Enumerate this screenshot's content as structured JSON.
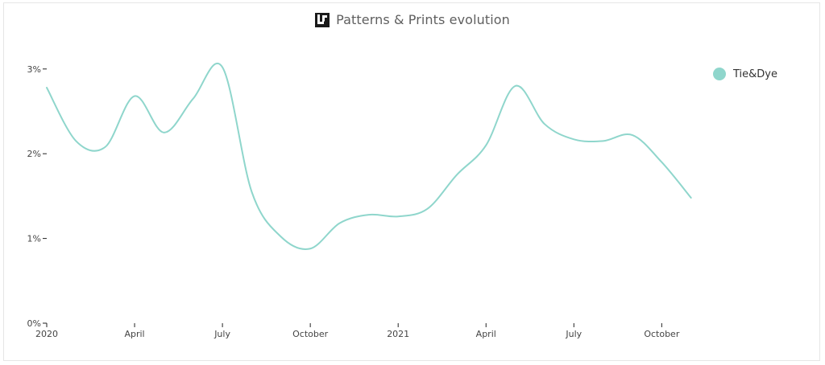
{
  "header": {
    "title": "Patterns & Prints evolution",
    "logo_icon": "brand-logo-icon"
  },
  "colors": {
    "series": "#8fd6cc",
    "axis": "#222222",
    "text": "#444444"
  },
  "chart_data": {
    "type": "line",
    "title": "Patterns & Prints evolution",
    "xlabel": "",
    "ylabel": "",
    "ylim": [
      0,
      3.0
    ],
    "xlim": [
      "2020-01",
      "2021-11"
    ],
    "y_ticks": [
      {
        "value": 0,
        "label": "0%"
      },
      {
        "value": 1,
        "label": "1%"
      },
      {
        "value": 2,
        "label": "2%"
      },
      {
        "value": 3,
        "label": "3%"
      }
    ],
    "x_ticks": [
      {
        "value": "2020-01",
        "label": "2020"
      },
      {
        "value": "2020-04",
        "label": "April"
      },
      {
        "value": "2020-07",
        "label": "July"
      },
      {
        "value": "2020-10",
        "label": "October"
      },
      {
        "value": "2021-01",
        "label": "2021"
      },
      {
        "value": "2021-04",
        "label": "April"
      },
      {
        "value": "2021-07",
        "label": "July"
      },
      {
        "value": "2021-10",
        "label": "October"
      }
    ],
    "legend_position": "top-right",
    "grid": false,
    "series": [
      {
        "name": "Tie&Dye",
        "x": [
          "2020-01",
          "2020-02",
          "2020-03",
          "2020-04",
          "2020-05",
          "2020-06",
          "2020-07",
          "2020-08",
          "2020-09",
          "2020-10",
          "2020-11",
          "2020-12",
          "2021-01",
          "2021-02",
          "2021-03",
          "2021-04",
          "2021-05",
          "2021-06",
          "2021-07",
          "2021-08",
          "2021-09",
          "2021-10",
          "2021-11"
        ],
        "values": [
          2.78,
          2.15,
          2.08,
          2.68,
          2.25,
          2.65,
          3.02,
          1.55,
          1.02,
          0.88,
          1.18,
          1.28,
          1.26,
          1.35,
          1.75,
          2.1,
          2.8,
          2.35,
          2.17,
          2.15,
          2.22,
          1.9,
          1.48
        ]
      }
    ]
  }
}
